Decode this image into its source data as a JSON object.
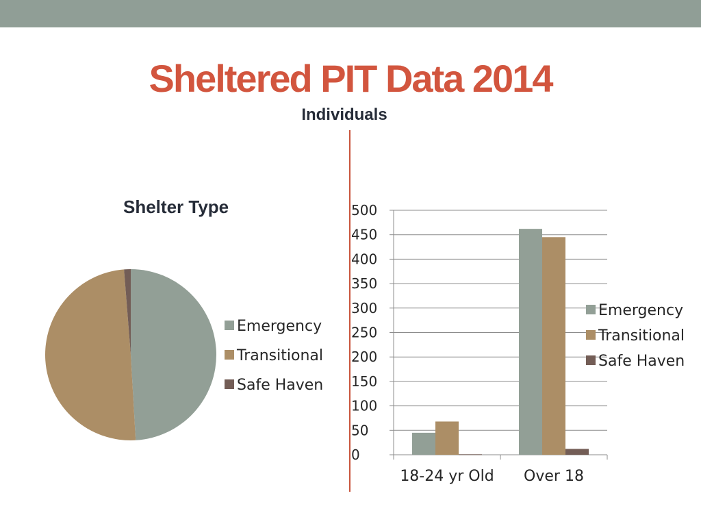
{
  "slide": {
    "title": "Sheltered PIT Data 2014",
    "subtitle": "Individuals"
  },
  "colors": {
    "emergency": "#929f96",
    "transitional": "#ac8e66",
    "safe_haven": "#735d56",
    "title": "#d2553e",
    "band": "#909e96",
    "divider": "#c9553d"
  },
  "chart_data": [
    {
      "type": "pie",
      "title": "Shelter Type",
      "categories": [
        "Emergency",
        "Transitional",
        "Safe Haven"
      ],
      "values": [
        507,
        513,
        13
      ],
      "legend": "right"
    },
    {
      "type": "bar",
      "title": "",
      "categories": [
        "18-24 yr Old",
        "Over 18"
      ],
      "series": [
        {
          "name": "Emergency",
          "values": [
            45,
            462
          ]
        },
        {
          "name": "Transitional",
          "values": [
            68,
            445
          ]
        },
        {
          "name": "Safe Haven",
          "values": [
            1,
            12
          ]
        }
      ],
      "ylim": [
        0,
        500
      ],
      "yticks": [
        0,
        50,
        100,
        150,
        200,
        250,
        300,
        350,
        400,
        450,
        500
      ],
      "grid": true,
      "legend": "right"
    }
  ]
}
